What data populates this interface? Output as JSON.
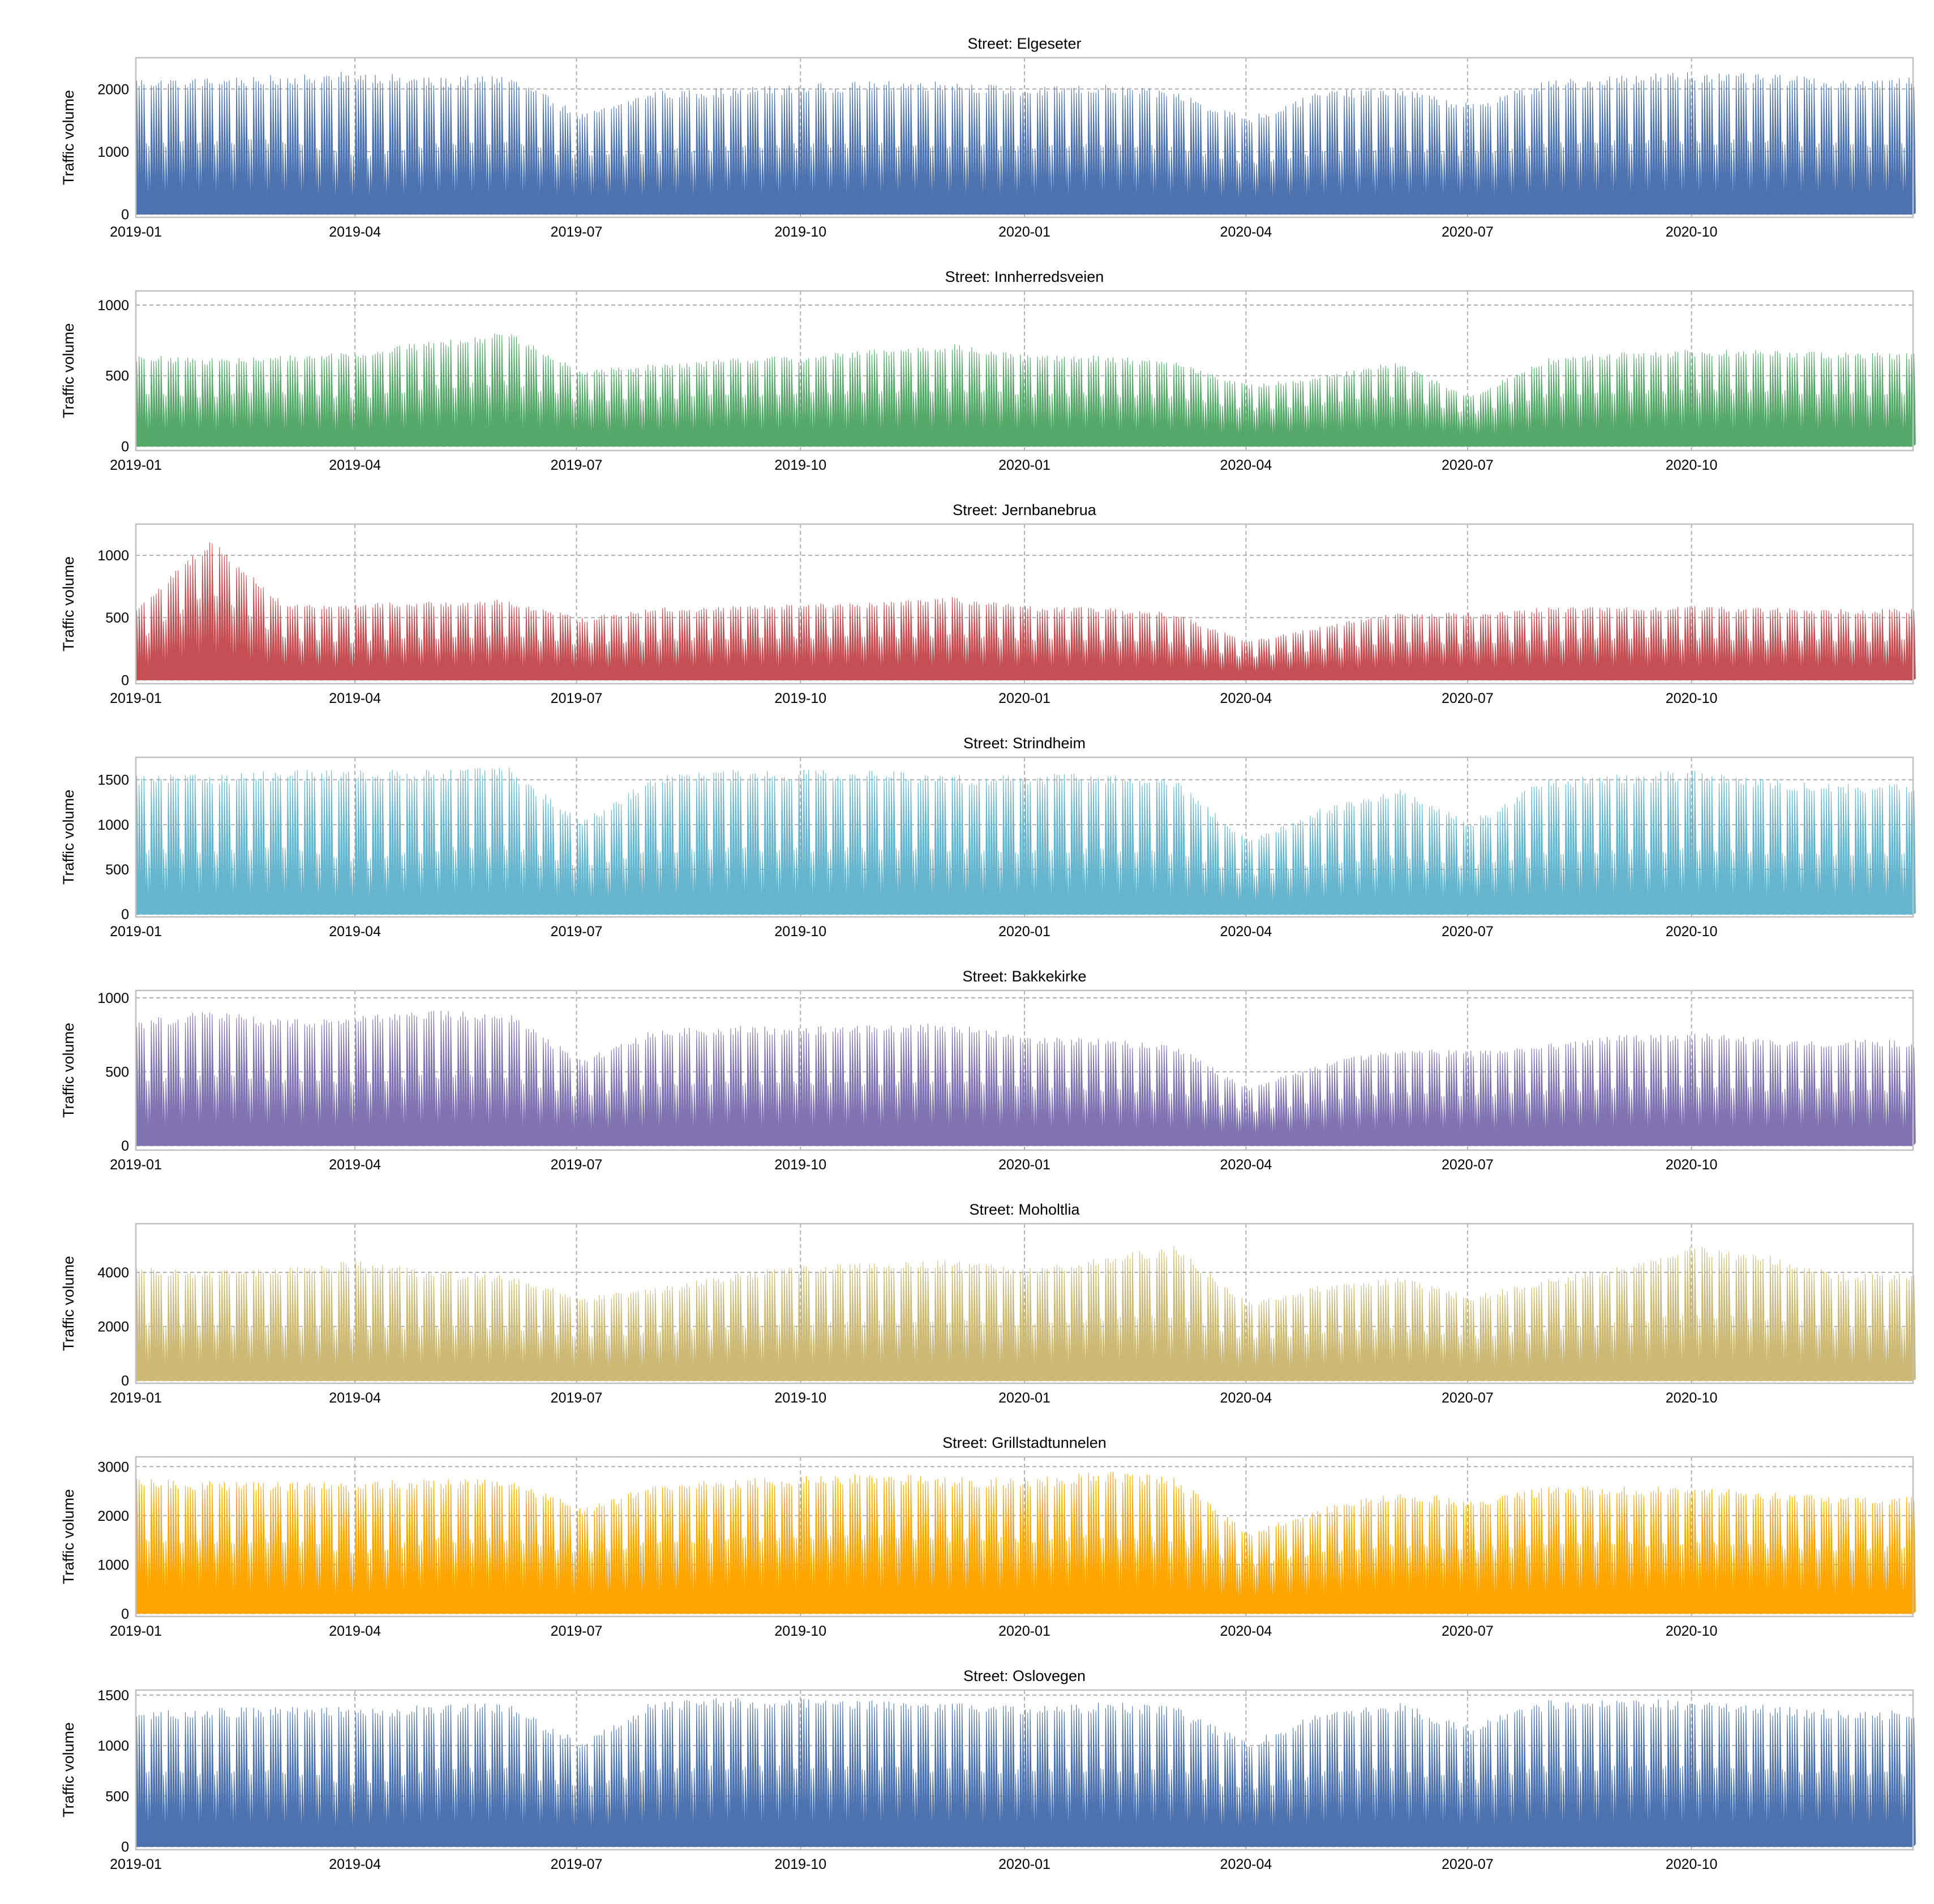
{
  "figure": {
    "ylabel": "Traffic volume",
    "x_ticks": [
      "2019-01",
      "2019-04",
      "2019-07",
      "2019-10",
      "2020-01",
      "2020-04",
      "2020-07",
      "2020-10"
    ],
    "x_range": [
      "2019-01-01",
      "2020-12-31"
    ]
  },
  "chart_data": [
    {
      "type": "area",
      "title": "Street: Elgeseter",
      "xlabel": "",
      "ylabel": "Traffic volume",
      "color": "#4C72B0",
      "ylim": [
        -50,
        2500
      ],
      "yticks": [
        0,
        1000,
        2000
      ],
      "series": [
        {
          "name": "Elgeseter",
          "x": [
            "2019-01",
            "2019-02",
            "2019-03",
            "2019-04",
            "2019-05",
            "2019-06",
            "2019-07",
            "2019-08",
            "2019-09",
            "2019-10",
            "2019-11",
            "2019-12",
            "2020-01",
            "2020-02",
            "2020-03",
            "2020-04",
            "2020-05",
            "2020-06",
            "2020-07",
            "2020-08",
            "2020-09",
            "2020-10",
            "2020-11",
            "2020-12"
          ],
          "weekday_peak": [
            2100,
            2100,
            2150,
            2200,
            2100,
            2150,
            1550,
            1900,
            1950,
            2000,
            2050,
            2050,
            1950,
            2000,
            1900,
            1500,
            1900,
            1950,
            1700,
            2050,
            2150,
            2200,
            2150,
            2100
          ],
          "weekend_peak": [
            1100,
            1150,
            1150,
            900,
            1100,
            1150,
            900,
            1000,
            1050,
            1100,
            1100,
            1100,
            1050,
            1100,
            1050,
            800,
            1000,
            1050,
            950,
            1100,
            1150,
            1150,
            1150,
            1100
          ],
          "night_min": [
            20,
            20,
            20,
            20,
            20,
            20,
            20,
            20,
            20,
            20,
            20,
            20,
            20,
            20,
            20,
            20,
            20,
            20,
            20,
            20,
            20,
            20,
            20,
            20
          ]
        }
      ]
    },
    {
      "type": "area",
      "title": "Street: Innherredsveien",
      "xlabel": "",
      "ylabel": "Traffic volume",
      "color": "#55A868",
      "ylim": [
        -30,
        1100
      ],
      "yticks": [
        0,
        500,
        1000
      ],
      "series": [
        {
          "name": "Innherredsveien",
          "x": [
            "2019-01",
            "2019-02",
            "2019-03",
            "2019-04",
            "2019-05",
            "2019-06",
            "2019-07",
            "2019-08",
            "2019-09",
            "2019-10",
            "2019-11",
            "2019-12",
            "2020-01",
            "2020-02",
            "2020-03",
            "2020-04",
            "2020-05",
            "2020-06",
            "2020-07",
            "2020-08",
            "2020-09",
            "2020-10",
            "2020-11",
            "2020-12"
          ],
          "weekday_peak": [
            620,
            600,
            620,
            650,
            720,
            780,
            520,
            560,
            600,
            620,
            660,
            700,
            620,
            620,
            580,
            420,
            480,
            580,
            340,
            600,
            640,
            660,
            660,
            640
          ],
          "weekend_peak": [
            360,
            360,
            380,
            340,
            420,
            450,
            320,
            340,
            360,
            370,
            380,
            400,
            360,
            370,
            350,
            260,
            300,
            350,
            230,
            360,
            380,
            390,
            390,
            370
          ],
          "night_min": [
            15,
            15,
            15,
            15,
            15,
            15,
            15,
            15,
            15,
            15,
            15,
            15,
            15,
            15,
            15,
            15,
            15,
            15,
            15,
            15,
            15,
            15,
            15,
            15
          ]
        }
      ]
    },
    {
      "type": "area",
      "title": "Street: Jernbanebrua",
      "xlabel": "",
      "ylabel": "Traffic volume",
      "color": "#C44E52",
      "ylim": [
        -30,
        1250
      ],
      "yticks": [
        0,
        500,
        1000
      ],
      "series": [
        {
          "name": "Jernbanebrua",
          "x": [
            "2019-01",
            "2019-02",
            "2019-03",
            "2019-04",
            "2019-05",
            "2019-06",
            "2019-07",
            "2019-08",
            "2019-09",
            "2019-10",
            "2019-11",
            "2019-12",
            "2020-01",
            "2020-02",
            "2020-03",
            "2020-04",
            "2020-05",
            "2020-06",
            "2020-07",
            "2020-08",
            "2020-09",
            "2020-10",
            "2020-11",
            "2020-12"
          ],
          "weekday_peak": [
            560,
            1100,
            580,
            590,
            610,
            620,
            480,
            560,
            570,
            590,
            600,
            640,
            570,
            560,
            520,
            300,
            420,
            520,
            520,
            560,
            570,
            570,
            560,
            550
          ],
          "weekend_peak": [
            320,
            700,
            330,
            300,
            340,
            350,
            290,
            320,
            330,
            340,
            340,
            360,
            320,
            320,
            300,
            180,
            250,
            300,
            300,
            320,
            330,
            330,
            320,
            320
          ],
          "night_min": [
            12,
            12,
            12,
            12,
            12,
            12,
            12,
            12,
            12,
            12,
            12,
            12,
            12,
            12,
            12,
            12,
            12,
            12,
            12,
            12,
            12,
            12,
            12,
            12
          ]
        }
      ]
    },
    {
      "type": "area",
      "title": "Street: Strindheim",
      "xlabel": "",
      "ylabel": "Traffic volume",
      "color": "#64B5CD",
      "ylim": [
        -30,
        1750
      ],
      "yticks": [
        0,
        500,
        1000,
        1500
      ],
      "series": [
        {
          "name": "Strindheim",
          "x": [
            "2019-01",
            "2019-02",
            "2019-03",
            "2019-04",
            "2019-05",
            "2019-06",
            "2019-07",
            "2019-08",
            "2019-09",
            "2019-10",
            "2019-11",
            "2019-12",
            "2020-01",
            "2020-02",
            "2020-03",
            "2020-04",
            "2020-05",
            "2020-06",
            "2020-07",
            "2020-08",
            "2020-09",
            "2020-10",
            "2020-11",
            "2020-12"
          ],
          "weekday_peak": [
            1500,
            1500,
            1550,
            1550,
            1550,
            1600,
            1000,
            1500,
            1550,
            1550,
            1550,
            1500,
            1500,
            1520,
            1450,
            800,
            1150,
            1350,
            1000,
            1450,
            1500,
            1550,
            1450,
            1400
          ],
          "weekend_peak": [
            700,
            700,
            720,
            600,
            720,
            750,
            520,
            700,
            720,
            720,
            720,
            700,
            700,
            710,
            680,
            420,
            560,
            650,
            520,
            680,
            700,
            720,
            680,
            660
          ],
          "night_min": [
            15,
            15,
            15,
            15,
            15,
            15,
            15,
            15,
            15,
            15,
            15,
            15,
            15,
            15,
            15,
            15,
            15,
            15,
            15,
            15,
            15,
            15,
            15,
            15
          ]
        }
      ]
    },
    {
      "type": "area",
      "title": "Street: Bakkekirke",
      "xlabel": "",
      "ylabel": "Traffic volume",
      "color": "#8172B2",
      "ylim": [
        -30,
        1050
      ],
      "yticks": [
        0,
        500,
        1000
      ],
      "series": [
        {
          "name": "Bakkekirke",
          "x": [
            "2019-01",
            "2019-02",
            "2019-03",
            "2019-04",
            "2019-05",
            "2019-06",
            "2019-07",
            "2019-08",
            "2019-09",
            "2019-10",
            "2019-11",
            "2019-12",
            "2020-01",
            "2020-02",
            "2020-03",
            "2020-04",
            "2020-05",
            "2020-06",
            "2020-07",
            "2020-08",
            "2020-09",
            "2020-10",
            "2020-11",
            "2020-12"
          ],
          "weekday_peak": [
            820,
            880,
            820,
            850,
            880,
            870,
            560,
            760,
            780,
            780,
            790,
            800,
            720,
            700,
            660,
            380,
            540,
            640,
            620,
            660,
            720,
            740,
            700,
            690
          ],
          "weekend_peak": [
            440,
            470,
            440,
            420,
            470,
            460,
            330,
            410,
            420,
            420,
            420,
            430,
            390,
            380,
            360,
            230,
            300,
            350,
            340,
            360,
            390,
            400,
            380,
            370
          ],
          "night_min": [
            20,
            20,
            20,
            20,
            20,
            20,
            20,
            20,
            20,
            20,
            20,
            20,
            20,
            20,
            20,
            20,
            20,
            20,
            20,
            20,
            20,
            20,
            20,
            20
          ]
        }
      ]
    },
    {
      "type": "area",
      "title": "Street: Moholtlia",
      "xlabel": "",
      "ylabel": "Traffic volume",
      "color": "#CCB974",
      "ylim": [
        -100,
        5800
      ],
      "yticks": [
        0,
        2000,
        4000
      ],
      "series": [
        {
          "name": "Moholtlia",
          "x": [
            "2019-01",
            "2019-02",
            "2019-03",
            "2019-04",
            "2019-05",
            "2019-06",
            "2019-07",
            "2019-08",
            "2019-09",
            "2019-10",
            "2019-11",
            "2019-12",
            "2020-01",
            "2020-02",
            "2020-03",
            "2020-04",
            "2020-05",
            "2020-06",
            "2020-07",
            "2020-08",
            "2020-09",
            "2020-10",
            "2020-11",
            "2020-12"
          ],
          "weekday_peak": [
            4100,
            3900,
            4000,
            4300,
            3900,
            3800,
            3000,
            3300,
            3800,
            4100,
            4200,
            4300,
            4000,
            4400,
            4800,
            2800,
            3400,
            3700,
            3000,
            3600,
            4100,
            4800,
            4500,
            3800
          ],
          "weekend_peak": [
            2100,
            2000,
            2050,
            1900,
            2000,
            1950,
            1600,
            1750,
            1950,
            2100,
            2150,
            2200,
            2050,
            2250,
            2400,
            1500,
            1800,
            1900,
            1600,
            1850,
            2100,
            2400,
            2300,
            1950
          ],
          "night_min": [
            60,
            60,
            60,
            60,
            60,
            60,
            60,
            60,
            60,
            60,
            60,
            60,
            60,
            60,
            60,
            60,
            60,
            60,
            60,
            60,
            60,
            60,
            60,
            60
          ]
        }
      ]
    },
    {
      "type": "area",
      "title": "Street: Grillstadtunnelen",
      "xlabel": "",
      "ylabel": "Traffic volume",
      "color": "#FFA500",
      "ylim": [
        -60,
        3200
      ],
      "yticks": [
        0,
        1000,
        2000,
        3000
      ],
      "series": [
        {
          "name": "Grillstadtunnelen",
          "x": [
            "2019-01",
            "2019-02",
            "2019-03",
            "2019-04",
            "2019-05",
            "2019-06",
            "2019-07",
            "2019-08",
            "2019-09",
            "2019-10",
            "2019-11",
            "2019-12",
            "2020-01",
            "2020-02",
            "2020-03",
            "2020-04",
            "2020-05",
            "2020-06",
            "2020-07",
            "2020-08",
            "2020-09",
            "2020-10",
            "2020-11",
            "2020-12"
          ],
          "weekday_peak": [
            2650,
            2600,
            2600,
            2600,
            2650,
            2650,
            2100,
            2550,
            2650,
            2700,
            2750,
            2700,
            2650,
            2800,
            2700,
            1600,
            2100,
            2400,
            2250,
            2500,
            2500,
            2500,
            2400,
            2300
          ],
          "weekend_peak": [
            1500,
            1480,
            1480,
            1250,
            1500,
            1500,
            1250,
            1450,
            1500,
            1520,
            1550,
            1520,
            1500,
            1560,
            1520,
            950,
            1250,
            1380,
            1300,
            1420,
            1420,
            1420,
            1380,
            1320
          ],
          "night_min": [
            40,
            40,
            40,
            40,
            40,
            40,
            40,
            40,
            40,
            40,
            40,
            40,
            40,
            40,
            40,
            40,
            40,
            40,
            40,
            40,
            40,
            40,
            40,
            40
          ]
        }
      ]
    },
    {
      "type": "area",
      "title": "Street: Oslovegen",
      "xlabel": "",
      "ylabel": "Traffic volume",
      "color": "#4C72B0",
      "ylim": [
        -30,
        1550
      ],
      "yticks": [
        0,
        500,
        1000,
        1500
      ],
      "series": [
        {
          "name": "Oslovegen",
          "x": [
            "2019-01",
            "2019-02",
            "2019-03",
            "2019-04",
            "2019-05",
            "2019-06",
            "2019-07",
            "2019-08",
            "2019-09",
            "2019-10",
            "2019-11",
            "2019-12",
            "2020-01",
            "2020-02",
            "2020-03",
            "2020-04",
            "2020-05",
            "2020-06",
            "2020-07",
            "2020-08",
            "2020-09",
            "2020-10",
            "2020-11",
            "2020-12"
          ],
          "weekday_peak": [
            1300,
            1320,
            1330,
            1330,
            1350,
            1370,
            1000,
            1400,
            1420,
            1420,
            1400,
            1380,
            1350,
            1380,
            1350,
            1000,
            1300,
            1380,
            1150,
            1400,
            1420,
            1400,
            1350,
            1300
          ],
          "weekend_peak": [
            720,
            730,
            740,
            620,
            750,
            760,
            580,
            770,
            780,
            780,
            770,
            760,
            740,
            760,
            740,
            560,
            720,
            760,
            640,
            770,
            780,
            770,
            740,
            720
          ],
          "night_min": [
            25,
            25,
            25,
            25,
            25,
            25,
            25,
            25,
            25,
            25,
            25,
            25,
            25,
            25,
            25,
            25,
            25,
            25,
            25,
            25,
            25,
            25,
            25,
            25
          ]
        }
      ]
    }
  ]
}
